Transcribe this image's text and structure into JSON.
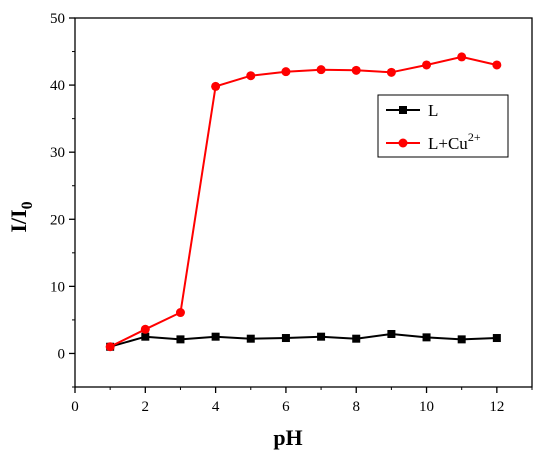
{
  "chart_data": {
    "type": "line",
    "xlabel": "pH",
    "ylabel_main": "I/I",
    "ylabel_sub": "0",
    "xlim": [
      0,
      13
    ],
    "ylim": [
      -5,
      50
    ],
    "x_ticks": [
      0,
      2,
      4,
      6,
      8,
      10,
      12
    ],
    "y_ticks": [
      0,
      10,
      20,
      30,
      40,
      50
    ],
    "x_tick_labels": [
      "0",
      "2",
      "4",
      "6",
      "8",
      "10",
      "12"
    ],
    "y_tick_labels": [
      "0",
      "10",
      "20",
      "30",
      "40",
      "50"
    ],
    "grid": false,
    "legend_position": "right",
    "series": [
      {
        "name": "L",
        "color": "#000000",
        "marker": "square",
        "x": [
          1,
          2,
          3,
          4,
          5,
          6,
          7,
          8,
          9,
          10,
          11,
          12
        ],
        "y": [
          1.0,
          2.5,
          2.1,
          2.5,
          2.2,
          2.3,
          2.5,
          2.2,
          2.9,
          2.4,
          2.1,
          2.3
        ]
      },
      {
        "name": "L+Cu",
        "name_sup": "2+",
        "color": "#ff0000",
        "marker": "circle",
        "x": [
          1,
          2,
          3,
          4,
          5,
          6,
          7,
          8,
          9,
          10,
          11,
          12
        ],
        "y": [
          1.0,
          3.6,
          6.1,
          39.8,
          41.4,
          42.0,
          42.3,
          42.2,
          41.9,
          43.0,
          44.2,
          43.0
        ]
      }
    ]
  }
}
